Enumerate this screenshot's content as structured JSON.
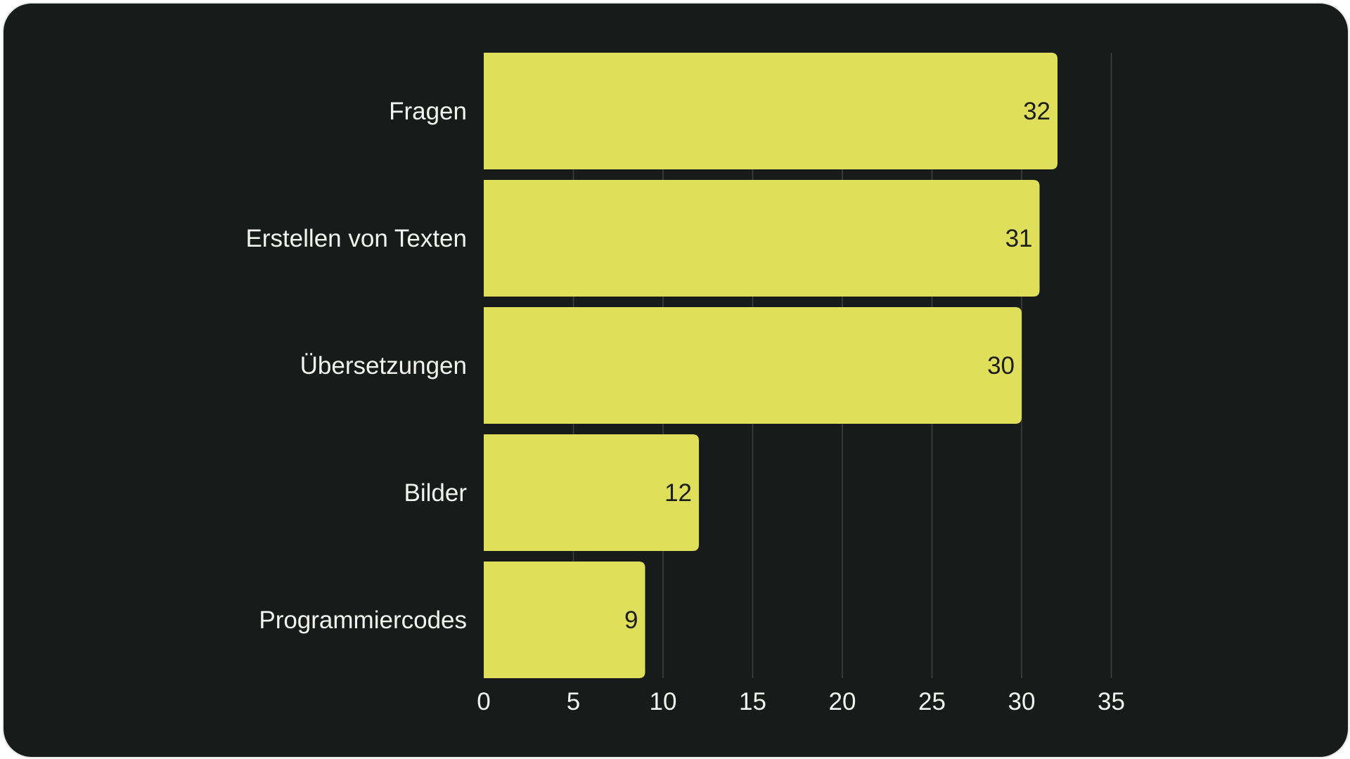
{
  "chart_data": {
    "type": "bar",
    "orientation": "horizontal",
    "categories": [
      "Fragen",
      "Erstellen von Texten",
      "Übersetzungen",
      "Bilder",
      "Programmiercodes"
    ],
    "values": [
      32,
      31,
      30,
      12,
      9
    ],
    "xlim": [
      0,
      35
    ],
    "xticks": [
      0,
      5,
      10,
      15,
      20,
      25,
      30,
      35
    ],
    "grid": true,
    "data_labels": true,
    "colors": {
      "background": "#171b1a",
      "bar": "#e0df5b",
      "text": "#f3f3f0",
      "value_text": "#1b1d1a",
      "grid": "#3e4341",
      "frame": "#e9e9e9"
    }
  }
}
